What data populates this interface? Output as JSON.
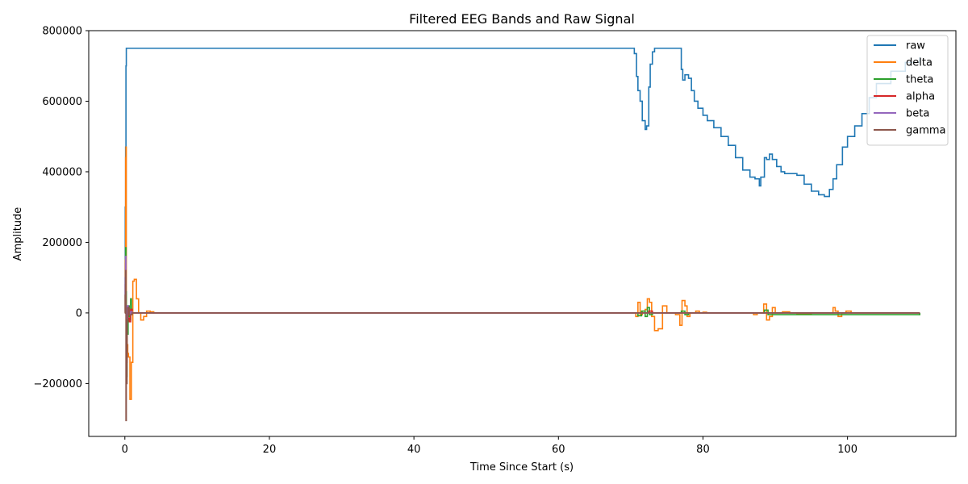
{
  "chart_data": {
    "type": "line",
    "title": "Filtered EEG Bands and Raw Signal",
    "xlabel": "Time Since Start (s)",
    "ylabel": "Amplitude",
    "xlim": [
      -5,
      115
    ],
    "ylim": [
      -350000,
      800000
    ],
    "xticks": [
      0,
      20,
      40,
      60,
      80,
      100
    ],
    "xtick_labels": [
      "0",
      "20",
      "40",
      "60",
      "80",
      "100"
    ],
    "yticks": [
      -200000,
      0,
      200000,
      400000,
      600000,
      800000
    ],
    "ytick_labels": [
      "−200000",
      "0",
      "200000",
      "400000",
      "600000",
      "800000"
    ],
    "grid": false,
    "legend_position": "top-right",
    "series": [
      {
        "name": "raw",
        "color": "#1f77b4",
        "x": [
          0.0,
          0.05,
          0.1,
          0.15,
          0.2,
          70.2,
          70.5,
          70.8,
          71.0,
          71.3,
          71.6,
          72.0,
          72.2,
          72.5,
          72.7,
          73.0,
          73.3,
          75.0,
          76.8,
          77.0,
          77.2,
          77.5,
          78.0,
          78.4,
          78.8,
          79.3,
          80.0,
          80.6,
          81.5,
          82.5,
          83.5,
          84.5,
          85.5,
          86.5,
          87.2,
          87.8,
          88.0,
          88.5,
          88.8,
          89.2,
          89.6,
          90.2,
          90.8,
          91.3,
          92.0,
          93.0,
          94.0,
          95.0,
          96.0,
          96.8,
          97.5,
          98.0,
          98.5,
          99.3,
          100.0,
          101.0,
          102.0,
          103.0,
          104.0,
          106.0,
          108.0,
          110.0
        ],
        "y": [
          5000,
          300000,
          470000,
          700000,
          750000,
          750000,
          735000,
          670000,
          630000,
          600000,
          545000,
          520000,
          530000,
          640000,
          705000,
          740000,
          750000,
          750000,
          750000,
          690000,
          660000,
          675000,
          665000,
          630000,
          600000,
          580000,
          560000,
          545000,
          525000,
          500000,
          475000,
          440000,
          405000,
          385000,
          380000,
          360000,
          385000,
          440000,
          435000,
          450000,
          435000,
          415000,
          400000,
          395000,
          395000,
          390000,
          365000,
          345000,
          335000,
          330000,
          350000,
          380000,
          420000,
          470000,
          500000,
          530000,
          565000,
          610000,
          650000,
          685000,
          710000,
          725000
        ]
      },
      {
        "name": "delta",
        "color": "#ff7f0e",
        "x": [
          0.0,
          0.05,
          0.1,
          0.15,
          0.2,
          0.3,
          0.4,
          0.5,
          0.7,
          0.9,
          1.1,
          1.3,
          1.6,
          1.9,
          2.2,
          2.6,
          3.0,
          3.5,
          4.0,
          5.0,
          70.0,
          70.7,
          71.0,
          71.3,
          71.6,
          72.0,
          72.3,
          72.6,
          72.9,
          73.3,
          73.8,
          74.4,
          75.0,
          75.6,
          76.2,
          76.8,
          77.1,
          77.5,
          77.8,
          78.2,
          78.6,
          79.0,
          79.5,
          80.0,
          80.5,
          81.0,
          86.5,
          87.0,
          87.5,
          88.0,
          88.4,
          88.8,
          89.2,
          89.6,
          90.0,
          91.0,
          92.0,
          93.0,
          95.0,
          97.5,
          98.0,
          98.3,
          98.7,
          99.2,
          99.8,
          100.5,
          101.5,
          110.0
        ],
        "y": [
          0,
          150000,
          440000,
          470000,
          -40000,
          -90000,
          -115000,
          -125000,
          -245000,
          -140000,
          90000,
          95000,
          40000,
          0,
          -20000,
          -10000,
          5000,
          3000,
          0,
          0,
          0,
          -10000,
          30000,
          -5000,
          5000,
          10000,
          40000,
          30000,
          -10000,
          -50000,
          -45000,
          20000,
          0,
          0,
          -5000,
          -35000,
          35000,
          20000,
          -10000,
          0,
          0,
          5000,
          0,
          2000,
          0,
          0,
          0,
          -5000,
          0,
          0,
          25000,
          -20000,
          -10000,
          15000,
          0,
          3000,
          0,
          -3000,
          0,
          0,
          15000,
          5000,
          -10000,
          0,
          5000,
          0,
          0,
          0
        ]
      },
      {
        "name": "theta",
        "color": "#2ca02c",
        "x": [
          0.0,
          0.05,
          0.1,
          0.15,
          0.2,
          0.3,
          0.45,
          0.6,
          0.7,
          0.8,
          0.9,
          1.0,
          1.5,
          70.0,
          71.0,
          71.5,
          72.0,
          72.3,
          72.6,
          73.0,
          74.0,
          77.0,
          77.5,
          78.0,
          88.0,
          88.5,
          89.0,
          110.0
        ],
        "y": [
          0,
          100000,
          185000,
          60000,
          -180000,
          -60000,
          20000,
          -10000,
          -20000,
          40000,
          10000,
          0,
          0,
          0,
          -8000,
          5000,
          -10000,
          15000,
          -5000,
          0,
          0,
          5000,
          -5000,
          0,
          0,
          8000,
          -5000,
          0
        ]
      },
      {
        "name": "alpha",
        "color": "#d62728",
        "x": [
          0.0,
          0.05,
          0.1,
          0.15,
          0.2,
          0.3,
          0.45,
          0.6,
          0.8,
          1.0,
          70.0,
          72.0,
          72.5,
          73.0,
          110.0
        ],
        "y": [
          0,
          80000,
          140000,
          20000,
          -140000,
          20000,
          -15000,
          -25000,
          10000,
          0,
          0,
          0,
          5000,
          0,
          0
        ]
      },
      {
        "name": "beta",
        "color": "#9467bd",
        "x": [
          0.0,
          0.05,
          0.1,
          0.15,
          0.2,
          0.3,
          0.45,
          0.6,
          0.8,
          1.0,
          110.0
        ],
        "y": [
          0,
          100000,
          160000,
          10000,
          -60000,
          20000,
          15000,
          -5000,
          3000,
          0,
          0
        ]
      },
      {
        "name": "gamma",
        "color": "#8c564b",
        "x": [
          0.0,
          0.05,
          0.1,
          0.15,
          0.2,
          0.3,
          0.4,
          0.6,
          1.0,
          110.0
        ],
        "y": [
          0,
          50000,
          120000,
          -305000,
          -200000,
          -20000,
          15000,
          -5000,
          0,
          0
        ]
      }
    ]
  }
}
